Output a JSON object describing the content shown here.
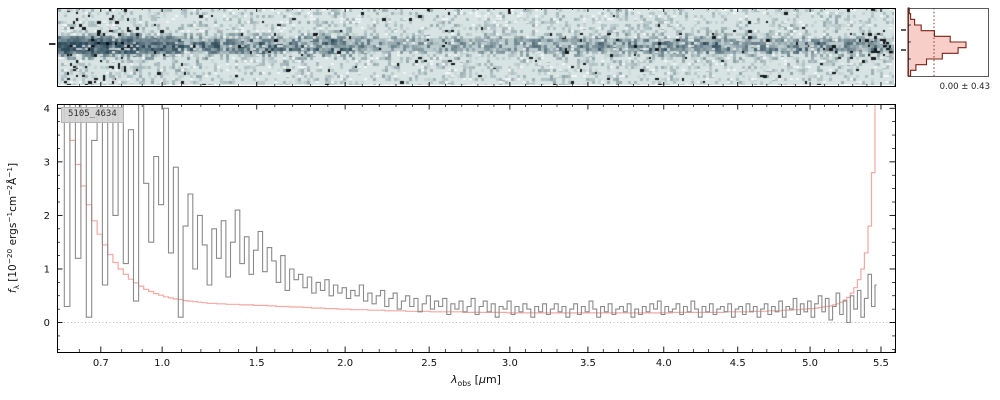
{
  "labels": {
    "id": "5105_4634",
    "stats": "0.00 ± 0.43",
    "xlabel_segments": [
      {
        "t": "λ",
        "style": "i"
      },
      {
        "t": "obs",
        "style": "sub"
      },
      {
        "t": " [",
        "style": ""
      },
      {
        "t": "μ",
        "style": "i"
      },
      {
        "t": "m]",
        "style": ""
      }
    ],
    "ylabel_segments": [
      {
        "t": "f",
        "style": "i"
      },
      {
        "t": "λ",
        "style": "sub"
      },
      {
        "t": " [10",
        "style": ""
      },
      {
        "t": "−20",
        "style": "sup"
      },
      {
        "t": " ergs",
        "style": ""
      },
      {
        "t": "−1",
        "style": "sup"
      },
      {
        "t": "cm",
        "style": ""
      },
      {
        "t": "−2",
        "style": "sup"
      },
      {
        "t": "Å",
        "style": ""
      },
      {
        "t": "−1",
        "style": "sup"
      },
      {
        "t": "]",
        "style": ""
      }
    ]
  },
  "colors": {
    "flux_line": "#8a8a8a",
    "error_line": "#f2a49d",
    "zero_line": "#b8b8b8",
    "axis": "#000000",
    "tick_label": "#111111",
    "spectrum2d_bg": "#d7e4e3",
    "spectrum2d_dark": "#284655",
    "hist_outline": "#7e2012",
    "hist_fill": "#f6c3ba"
  },
  "chart_data": {
    "type": "line",
    "title": "5105_4634",
    "xlabel": "λ_obs [μm]",
    "ylabel": "f_λ [10^−20 ergs^−1 cm^−2 Å^−1]",
    "xlim": [
      0.5,
      5.6
    ],
    "ylim": [
      -0.55,
      4.08
    ],
    "x_scale_power": 0.8,
    "x_ticks": [
      0.7,
      1.0,
      1.5,
      2.0,
      2.5,
      3.0,
      3.5,
      4.0,
      4.5,
      5.0,
      5.5
    ],
    "x_minor_step": 0.1,
    "y_ticks": [
      0,
      1,
      2,
      3,
      4
    ],
    "y_minor_step": 0.25,
    "grid": "zero-line-only",
    "legend": "none",
    "x_start": 0.52,
    "x_step": 0.025,
    "series": [
      {
        "name": "flux",
        "color": "#8a8a8a",
        "values": [
          5.8,
          0.3,
          4.6,
          1.2,
          6.5,
          0.1,
          3.4,
          5.9,
          0.7,
          4.2,
          2.0,
          5.1,
          1.1,
          3.6,
          0.4,
          4.4,
          2.6,
          1.5,
          3.1,
          2.2,
          4.0,
          1.3,
          2.9,
          0.1,
          1.8,
          2.4,
          1.0,
          2.0,
          1.45,
          0.7,
          1.75,
          1.2,
          1.9,
          0.85,
          1.5,
          2.1,
          1.1,
          1.6,
          0.9,
          1.35,
          1.7,
          0.95,
          1.4,
          1.15,
          0.75,
          1.25,
          0.6,
          1.0,
          0.8,
          0.9,
          0.65,
          0.85,
          0.55,
          0.75,
          0.6,
          0.8,
          0.5,
          0.7,
          0.55,
          0.65,
          0.45,
          0.6,
          0.5,
          0.7,
          0.4,
          0.55,
          0.35,
          0.5,
          0.6,
          0.3,
          0.45,
          0.55,
          0.25,
          0.4,
          0.5,
          0.3,
          0.45,
          0.2,
          0.35,
          0.5,
          0.25,
          0.4,
          0.3,
          0.45,
          0.15,
          0.35,
          0.25,
          0.4,
          0.2,
          0.3,
          0.45,
          0.15,
          0.3,
          0.4,
          0.2,
          0.35,
          0.1,
          0.3,
          0.25,
          0.4,
          0.15,
          0.3,
          0.2,
          0.35,
          0.25,
          0.1,
          0.3,
          0.2,
          0.35,
          0.15,
          0.25,
          0.35,
          0.2,
          0.3,
          0.1,
          0.25,
          0.35,
          0.15,
          0.3,
          0.2,
          0.4,
          0.25,
          0.1,
          0.3,
          0.2,
          0.35,
          0.15,
          0.25,
          0.3,
          0.2,
          0.35,
          0.1,
          0.25,
          0.15,
          0.3,
          0.2,
          0.35,
          0.25,
          0.4,
          0.15,
          0.3,
          0.2,
          0.25,
          0.35,
          0.15,
          0.3,
          0.2,
          0.4,
          0.25,
          0.1,
          0.3,
          0.2,
          0.35,
          0.15,
          0.25,
          0.3,
          0.2,
          0.35,
          0.1,
          0.25,
          0.3,
          0.15,
          0.35,
          0.2,
          0.3,
          0.1,
          0.25,
          0.35,
          0.15,
          0.3,
          0.2,
          0.4,
          0.1,
          0.3,
          0.25,
          0.45,
          0.15,
          0.35,
          0.2,
          0.4,
          0.1,
          0.35,
          0.5,
          0.2,
          0.45,
          0.05,
          0.3,
          0.55,
          0.15,
          0.4,
          0.0,
          0.5,
          0.25,
          0.6,
          0.1,
          0.45,
          0.9,
          0.3,
          0.7
        ]
      },
      {
        "name": "uncertainty",
        "color": "#f2a49d",
        "values": [
          4.5,
          3.9,
          3.4,
          2.95,
          2.55,
          2.2,
          1.9,
          1.65,
          1.45,
          1.27,
          1.12,
          1.0,
          0.9,
          0.81,
          0.74,
          0.68,
          0.62,
          0.58,
          0.54,
          0.51,
          0.48,
          0.46,
          0.44,
          0.43,
          0.41,
          0.4,
          0.39,
          0.38,
          0.37,
          0.36,
          0.36,
          0.35,
          0.35,
          0.34,
          0.34,
          0.34,
          0.33,
          0.33,
          0.33,
          0.32,
          0.32,
          0.32,
          0.31,
          0.31,
          0.3,
          0.3,
          0.3,
          0.29,
          0.29,
          0.29,
          0.28,
          0.28,
          0.27,
          0.27,
          0.27,
          0.26,
          0.26,
          0.26,
          0.25,
          0.25,
          0.25,
          0.24,
          0.24,
          0.24,
          0.24,
          0.23,
          0.23,
          0.23,
          0.23,
          0.22,
          0.22,
          0.22,
          0.22,
          0.22,
          0.21,
          0.21,
          0.21,
          0.21,
          0.21,
          0.21,
          0.2,
          0.2,
          0.2,
          0.2,
          0.2,
          0.2,
          0.2,
          0.2,
          0.19,
          0.19,
          0.19,
          0.19,
          0.19,
          0.19,
          0.19,
          0.19,
          0.19,
          0.19,
          0.19,
          0.18,
          0.18,
          0.18,
          0.18,
          0.18,
          0.18,
          0.18,
          0.18,
          0.18,
          0.18,
          0.18,
          0.18,
          0.18,
          0.18,
          0.18,
          0.18,
          0.18,
          0.18,
          0.18,
          0.18,
          0.18,
          0.18,
          0.18,
          0.18,
          0.18,
          0.18,
          0.18,
          0.18,
          0.18,
          0.18,
          0.18,
          0.18,
          0.18,
          0.18,
          0.18,
          0.18,
          0.18,
          0.18,
          0.18,
          0.18,
          0.18,
          0.18,
          0.18,
          0.19,
          0.19,
          0.19,
          0.19,
          0.19,
          0.19,
          0.19,
          0.19,
          0.19,
          0.19,
          0.19,
          0.19,
          0.19,
          0.19,
          0.2,
          0.2,
          0.2,
          0.2,
          0.2,
          0.2,
          0.2,
          0.21,
          0.21,
          0.21,
          0.21,
          0.21,
          0.22,
          0.22,
          0.22,
          0.22,
          0.23,
          0.23,
          0.23,
          0.24,
          0.24,
          0.25,
          0.25,
          0.26,
          0.26,
          0.27,
          0.28,
          0.29,
          0.3,
          0.31,
          0.33,
          0.35,
          0.38,
          0.42,
          0.47,
          0.55,
          0.65,
          0.8,
          1.0,
          1.3,
          1.8,
          2.8,
          4.3
        ]
      }
    ],
    "residual_histogram": {
      "label": "0.00 ± 0.43",
      "mean": 0.0,
      "sigma": 0.43,
      "value_range": [
        -1.2,
        1.2
      ],
      "counts_top_to_bottom": [
        0.5,
        1,
        2.5,
        5,
        10,
        16,
        22,
        19,
        13,
        7,
        3,
        1
      ]
    }
  }
}
